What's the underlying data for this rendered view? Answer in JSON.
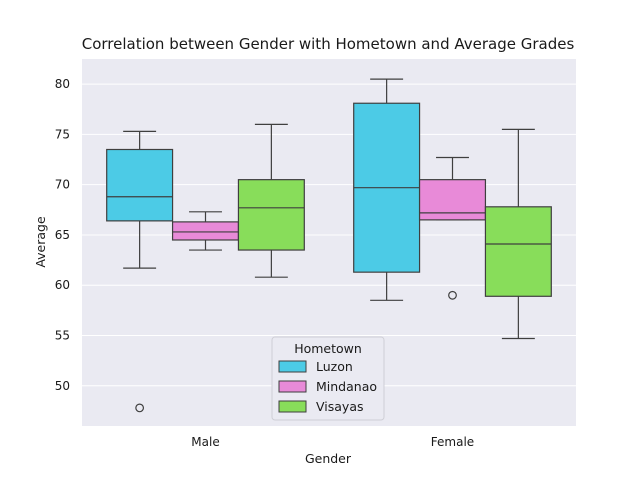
{
  "chart_data": {
    "type": "box",
    "title": "Correlation between Gender with Hometown and Average Grades",
    "xlabel": "Gender",
    "ylabel": "Average",
    "categories": [
      "Male",
      "Female"
    ],
    "ylim": [
      46,
      82.5
    ],
    "yticks": [
      50,
      55,
      60,
      65,
      70,
      75,
      80
    ],
    "grid": true,
    "legend": {
      "title": "Hometown",
      "position": "bottom-center"
    },
    "series": [
      {
        "name": "Luzon",
        "color": "#4CCBE6",
        "boxes": [
          {
            "category": "Male",
            "whisker_low": 61.7,
            "q1": 66.4,
            "median": 68.8,
            "q3": 73.5,
            "whisker_high": 75.3,
            "outliers": [
              47.8
            ]
          },
          {
            "category": "Female",
            "whisker_low": 58.5,
            "q1": 61.3,
            "median": 69.7,
            "q3": 78.1,
            "whisker_high": 80.5,
            "outliers": []
          }
        ]
      },
      {
        "name": "Mindanao",
        "color": "#E88AD8",
        "boxes": [
          {
            "category": "Male",
            "whisker_low": 63.5,
            "q1": 64.5,
            "median": 65.3,
            "q3": 66.3,
            "whisker_high": 67.3,
            "outliers": []
          },
          {
            "category": "Female",
            "whisker_low": 66.5,
            "q1": 66.5,
            "median": 67.2,
            "q3": 70.5,
            "whisker_high": 72.7,
            "outliers": [
              59.0
            ]
          }
        ]
      },
      {
        "name": "Visayas",
        "color": "#88DD5A",
        "boxes": [
          {
            "category": "Male",
            "whisker_low": 60.8,
            "q1": 63.5,
            "median": 67.7,
            "q3": 70.5,
            "whisker_high": 76.0,
            "outliers": []
          },
          {
            "category": "Female",
            "whisker_low": 54.7,
            "q1": 58.9,
            "median": 64.1,
            "q3": 67.8,
            "whisker_high": 75.5,
            "outliers": []
          }
        ]
      }
    ]
  }
}
